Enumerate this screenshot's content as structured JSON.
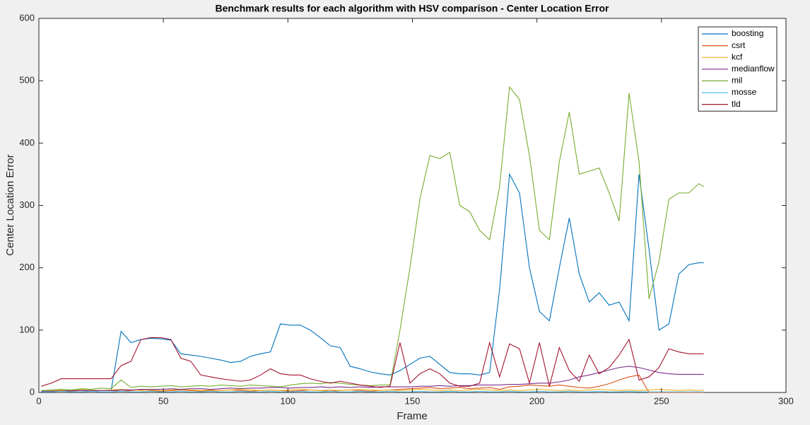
{
  "chart_data": {
    "type": "line",
    "title": "Benchmark results for each algorithm with HSV comparison - Center Location Error",
    "x_label": "Frame",
    "y_label": "Center Location Error",
    "xlim": [
      0,
      300
    ],
    "ylim": [
      0,
      600
    ],
    "xticks": [
      0,
      50,
      100,
      150,
      200,
      250,
      300
    ],
    "yticks": [
      0,
      100,
      200,
      300,
      400,
      500,
      600
    ],
    "grid": false,
    "legend_position": "top-right",
    "x": [
      1,
      5,
      9,
      13,
      17,
      21,
      25,
      29,
      33,
      37,
      41,
      45,
      49,
      53,
      57,
      61,
      65,
      69,
      73,
      77,
      81,
      85,
      89,
      93,
      97,
      101,
      105,
      109,
      113,
      117,
      121,
      125,
      129,
      133,
      137,
      141,
      145,
      149,
      153,
      157,
      161,
      165,
      169,
      173,
      177,
      181,
      185,
      189,
      193,
      197,
      201,
      205,
      209,
      213,
      217,
      221,
      225,
      229,
      233,
      237,
      241,
      245,
      249,
      253,
      257,
      261,
      265,
      267
    ],
    "series": [
      {
        "name": "boosting",
        "color": "#0072BD",
        "values": [
          3,
          3,
          3,
          3,
          3,
          3,
          3,
          3,
          98,
          80,
          85,
          87,
          86,
          84,
          62,
          60,
          58,
          55,
          52,
          48,
          50,
          58,
          62,
          65,
          110,
          108,
          108,
          100,
          88,
          75,
          72,
          42,
          38,
          33,
          30,
          28,
          35,
          45,
          55,
          58,
          45,
          32,
          30,
          30,
          28,
          32,
          165,
          350,
          320,
          200,
          130,
          115,
          200,
          280,
          190,
          145,
          160,
          140,
          145,
          115,
          350,
          230,
          100,
          110,
          190,
          205,
          208,
          208
        ]
      },
      {
        "name": "csrt",
        "color": "#D95319",
        "values": [
          2,
          2,
          3,
          2,
          3,
          2,
          3,
          3,
          2,
          3,
          4,
          3,
          2,
          3,
          4,
          3,
          2,
          3,
          3,
          4,
          3,
          2,
          3,
          4,
          3,
          2,
          3,
          4,
          3,
          2,
          3,
          4,
          3,
          2,
          3,
          4,
          5,
          6,
          7,
          8,
          6,
          7,
          8,
          6,
          7,
          8,
          5,
          9,
          10,
          12,
          11,
          10,
          12,
          10,
          8,
          7,
          10,
          14,
          20,
          25,
          28,
          0,
          0,
          0,
          0,
          0,
          0,
          0
        ]
      },
      {
        "name": "kcf",
        "color": "#EDB120",
        "values": [
          2,
          3,
          4,
          3,
          5,
          4,
          3,
          4,
          5,
          4,
          3,
          4,
          3,
          4,
          5,
          4,
          3,
          4,
          3,
          4,
          5,
          4,
          3,
          4,
          3,
          4,
          5,
          4,
          3,
          4,
          3,
          4,
          5,
          4,
          3,
          4,
          3,
          4,
          5,
          4,
          3,
          4,
          3,
          4,
          5,
          4,
          3,
          4,
          3,
          4,
          5,
          4,
          3,
          4,
          3,
          4,
          5,
          4,
          3,
          4,
          3,
          4,
          5,
          4,
          3,
          4,
          3,
          4
        ]
      },
      {
        "name": "medianflow",
        "color": "#7E2F8E",
        "values": [
          2,
          2,
          2,
          3,
          3,
          3,
          3,
          3,
          4,
          4,
          5,
          5,
          5,
          6,
          5,
          6,
          6,
          5,
          6,
          7,
          6,
          7,
          7,
          8,
          8,
          7,
          8,
          8,
          9,
          8,
          9,
          8,
          9,
          8,
          9,
          9,
          9,
          9,
          10,
          10,
          11,
          10,
          11,
          11,
          12,
          12,
          12,
          13,
          13,
          14,
          15,
          15,
          17,
          20,
          25,
          28,
          32,
          36,
          40,
          42,
          40,
          36,
          32,
          30,
          29,
          29,
          29,
          29
        ]
      },
      {
        "name": "mil",
        "color": "#77AC30",
        "values": [
          3,
          4,
          5,
          4,
          6,
          5,
          7,
          6,
          20,
          8,
          10,
          9,
          10,
          11,
          9,
          10,
          11,
          10,
          12,
          11,
          10,
          12,
          11,
          10,
          9,
          12,
          14,
          15,
          14,
          16,
          15,
          13,
          12,
          11,
          12,
          12,
          100,
          200,
          310,
          380,
          375,
          385,
          300,
          290,
          260,
          245,
          330,
          490,
          470,
          380,
          260,
          245,
          370,
          450,
          350,
          355,
          360,
          320,
          275,
          480,
          370,
          150,
          210,
          310,
          320,
          320,
          335,
          330
        ]
      },
      {
        "name": "mosse",
        "color": "#4DBEEE",
        "values": [
          1,
          1,
          2,
          1,
          1,
          2,
          1,
          1,
          2,
          1,
          1,
          2,
          1,
          1,
          2,
          1,
          1,
          2,
          1,
          1,
          2,
          1,
          1,
          2,
          1,
          1,
          2,
          1,
          1,
          2,
          1,
          1,
          2,
          1,
          1,
          2,
          1,
          1,
          2,
          1,
          1,
          2,
          1,
          1,
          2,
          1,
          1,
          2,
          1,
          1,
          2,
          1,
          1,
          2,
          1,
          1,
          2,
          1,
          1,
          2,
          1,
          1,
          1,
          1,
          1,
          1,
          1,
          1
        ]
      },
      {
        "name": "tld",
        "color": "#A2142F",
        "values": [
          10,
          15,
          22,
          22,
          22,
          22,
          22,
          22,
          43,
          50,
          85,
          88,
          88,
          85,
          55,
          50,
          28,
          25,
          22,
          20,
          18,
          20,
          28,
          38,
          30,
          28,
          28,
          22,
          18,
          15,
          18,
          15,
          12,
          10,
          8,
          10,
          80,
          15,
          30,
          38,
          30,
          15,
          10,
          10,
          15,
          80,
          25,
          78,
          70,
          15,
          80,
          10,
          72,
          35,
          18,
          60,
          30,
          40,
          60,
          85,
          20,
          25,
          40,
          70,
          65,
          62,
          62,
          62
        ]
      }
    ]
  }
}
